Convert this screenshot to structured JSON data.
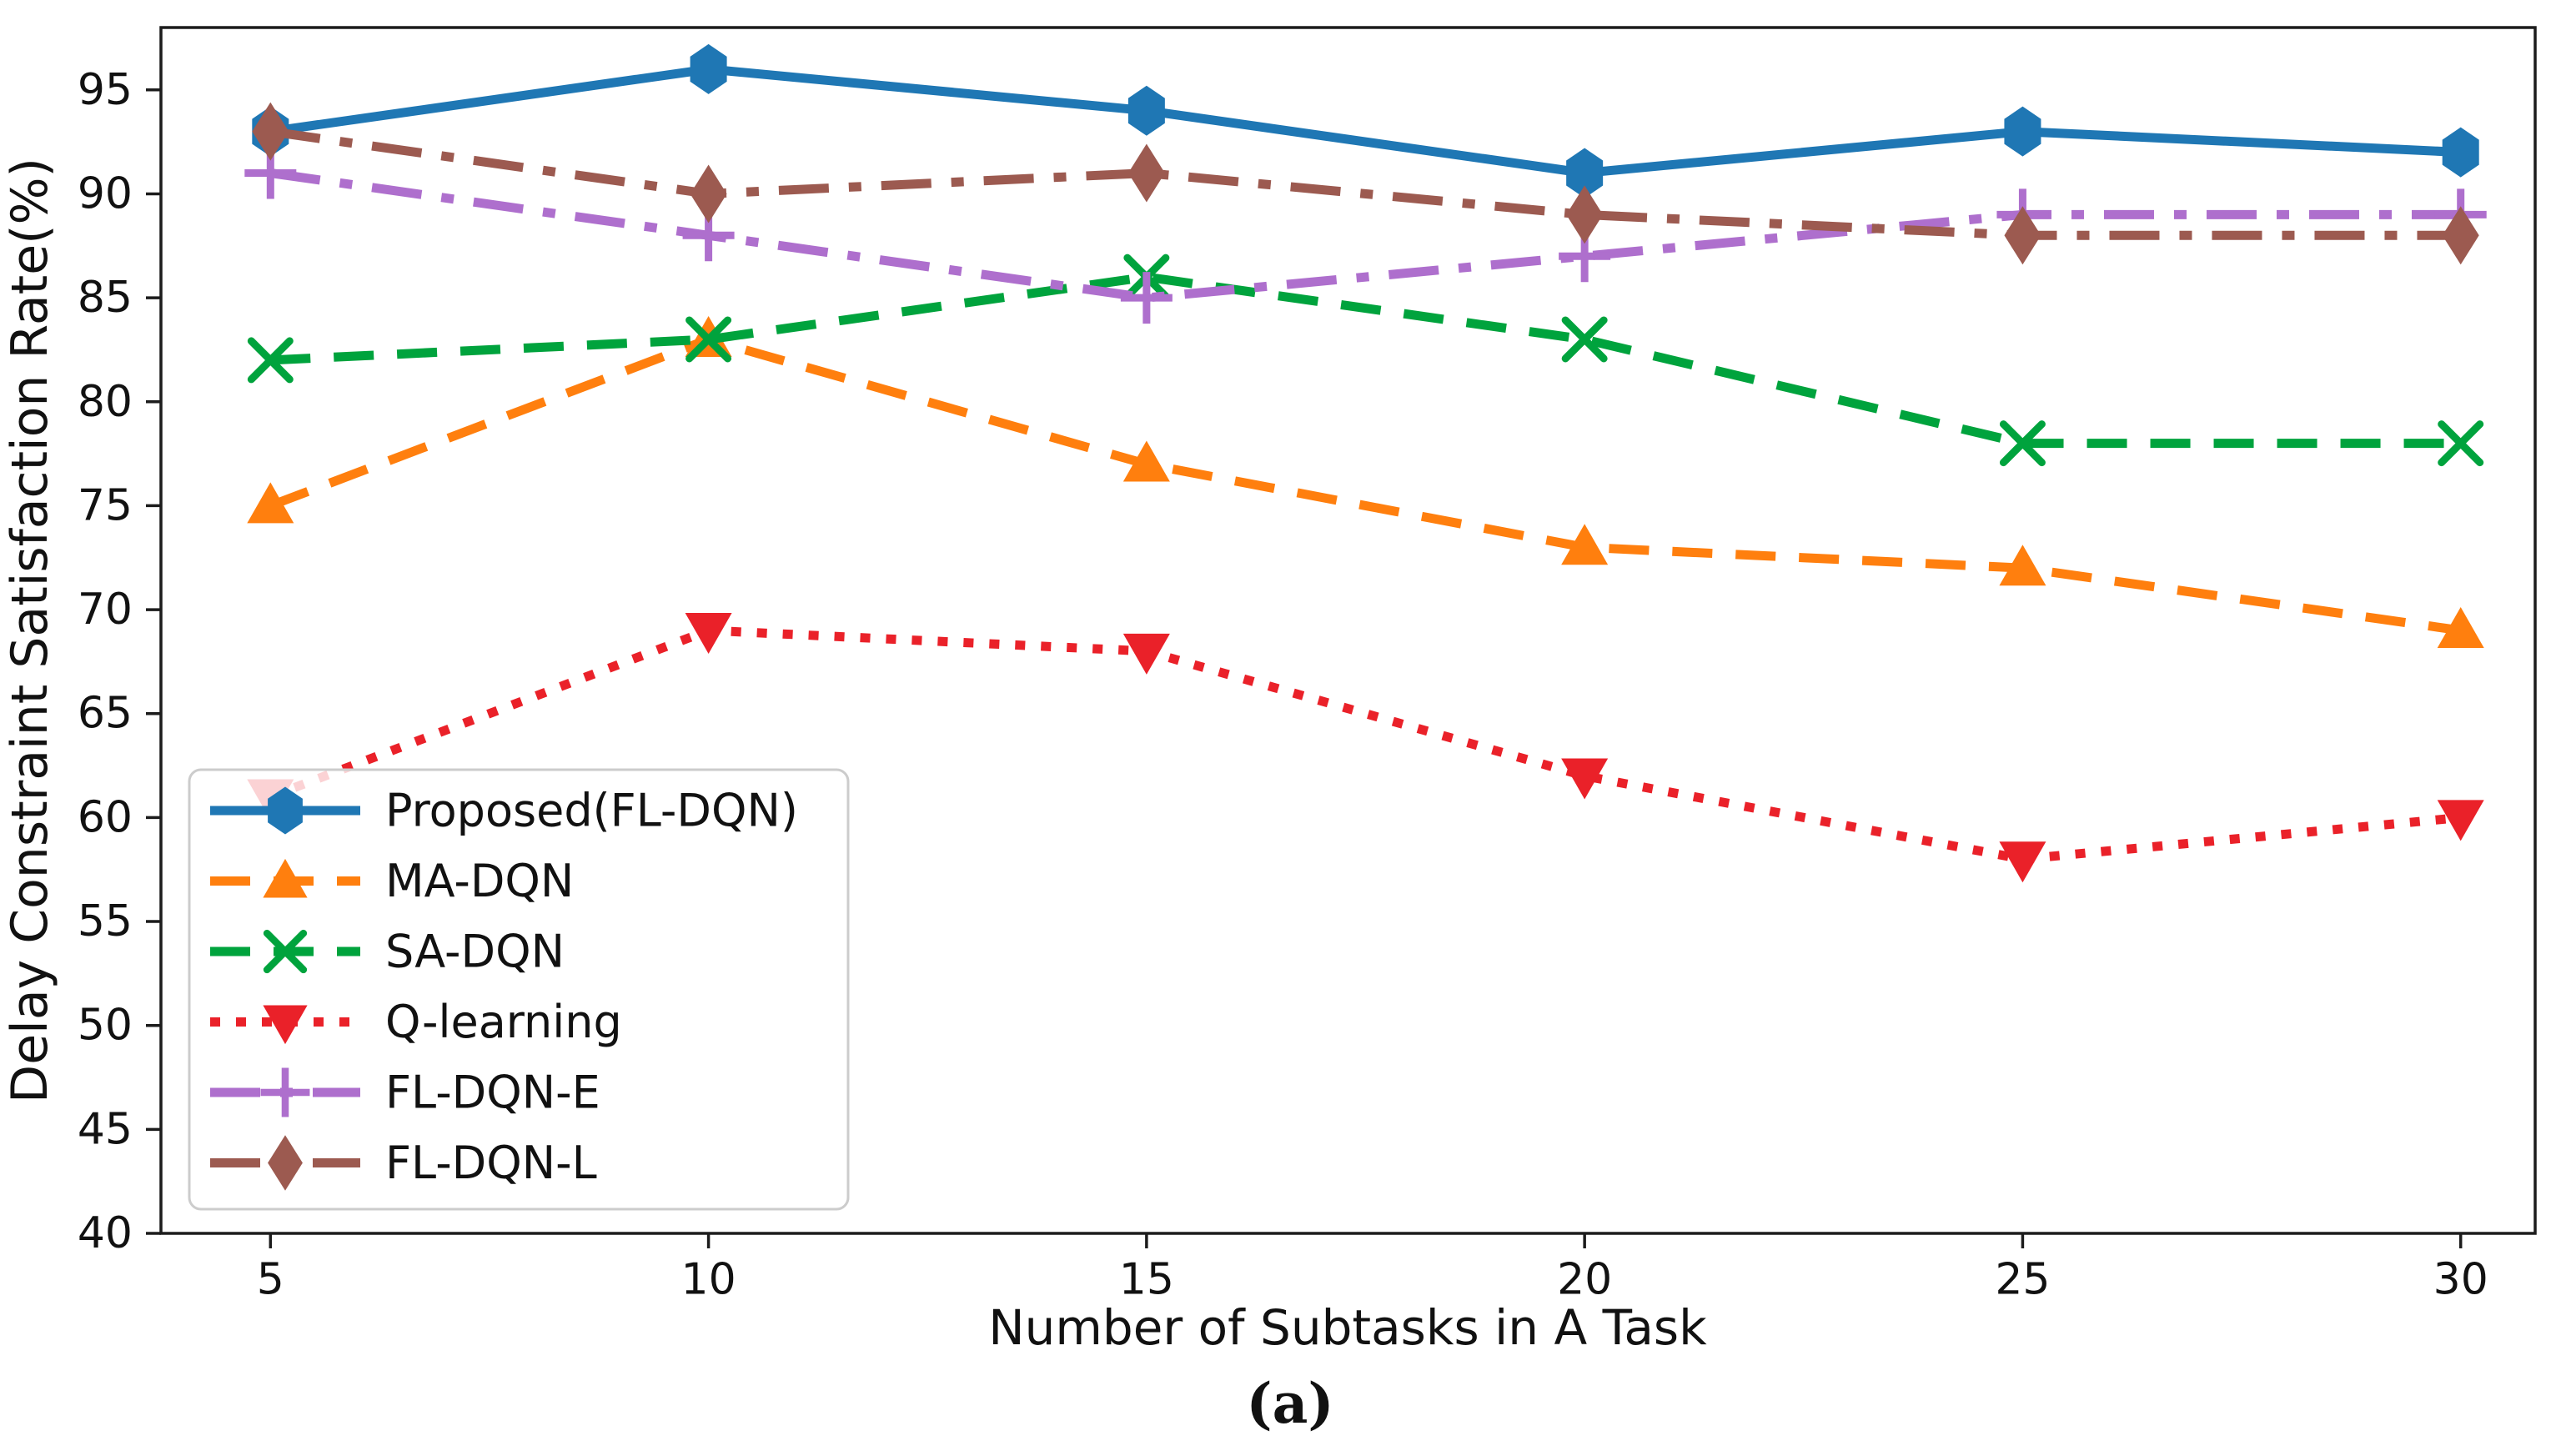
{
  "figure": {
    "caption": "(a)",
    "background": "#ffffff",
    "spine_color": "#1c1c1c",
    "legend_border_color": "#cccccc",
    "legend_background": "rgba(255,255,255,0.8)"
  },
  "chart_data": {
    "type": "line",
    "title": "",
    "xlabel": "Number of Subtasks in A Task",
    "ylabel": "Delay Constraint Satisfaction Rate(%)",
    "x": [
      5,
      10,
      15,
      20,
      25,
      30
    ],
    "xticks": [
      "5",
      "10",
      "15",
      "20",
      "25",
      "30"
    ],
    "yticks": [
      "40",
      "45",
      "50",
      "55",
      "60",
      "65",
      "70",
      "75",
      "80",
      "85",
      "90",
      "95"
    ],
    "ytick_values": [
      40,
      45,
      50,
      55,
      60,
      65,
      70,
      75,
      80,
      85,
      90,
      95
    ],
    "xlim": [
      3.75,
      30.85
    ],
    "ylim": [
      40,
      98
    ],
    "grid": false,
    "legend_position": "lower-left",
    "series": [
      {
        "name": "Proposed(FL-DQN)",
        "color": "#1f77b4",
        "linestyle": "solid",
        "marker": "hexagon",
        "values": [
          93,
          96,
          94,
          91,
          93,
          92
        ]
      },
      {
        "name": "MA-DQN",
        "color": "#ff7f0e",
        "linestyle": "dashed",
        "marker": "triangle-up",
        "values": [
          75,
          83,
          77,
          73,
          72,
          69
        ]
      },
      {
        "name": "SA-DQN",
        "color": "#00a33d",
        "linestyle": "dashed",
        "marker": "x-cross",
        "values": [
          82,
          83,
          86,
          83,
          78,
          78
        ]
      },
      {
        "name": "Q-learning",
        "color": "#ea2129",
        "linestyle": "dotted",
        "marker": "triangle-down",
        "values": [
          61,
          69,
          68,
          62,
          58,
          60
        ]
      },
      {
        "name": "FL-DQN-E",
        "color": "#ae6fcd",
        "linestyle": "dashdot",
        "marker": "plus",
        "values": [
          91,
          88,
          85,
          87,
          89,
          89
        ]
      },
      {
        "name": "FL-DQN-L",
        "color": "#9c5a50",
        "linestyle": "dashdot",
        "marker": "diamond-thin",
        "values": [
          93,
          90,
          91,
          89,
          88,
          88
        ]
      }
    ]
  }
}
